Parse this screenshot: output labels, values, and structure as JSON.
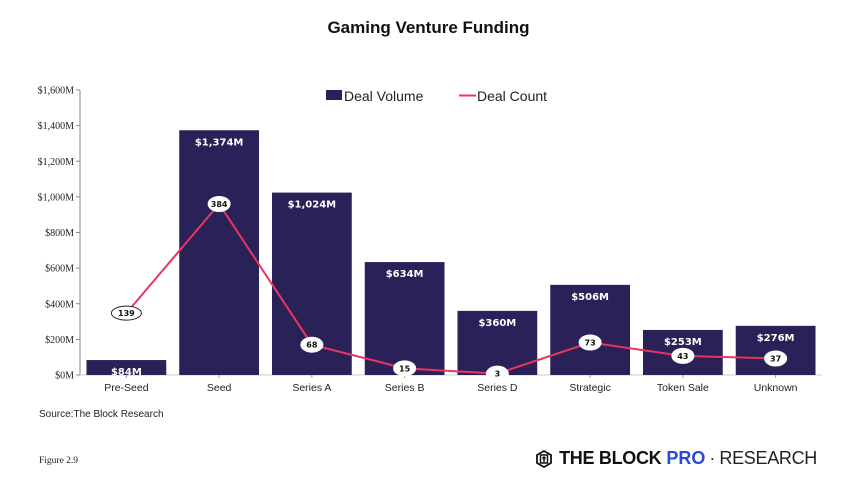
{
  "chart_data": {
    "type": "bar",
    "title": "Gaming Venture Funding",
    "xlabel": "",
    "ylabel": "",
    "categories": [
      "Pre-Seed",
      "Seed",
      "Series A",
      "Series B",
      "Series D",
      "Strategic",
      "Token Sale",
      "Unknown"
    ],
    "series": [
      {
        "name": "Deal Volume",
        "type": "bar",
        "axis": "left",
        "values": [
          84,
          1374,
          1024,
          634,
          360,
          506,
          253,
          276
        ],
        "labels": [
          "$84M",
          "$1,374M",
          "$1,024M",
          "$634M",
          "$360M",
          "$506M",
          "$253M",
          "$276M"
        ],
        "color": "#2a2159"
      },
      {
        "name": "Deal Count",
        "type": "line",
        "axis": "right-hidden",
        "values": [
          139,
          384,
          68,
          15,
          3,
          73,
          43,
          37
        ],
        "labels": [
          "139",
          "384",
          "68",
          "15",
          "3",
          "73",
          "43",
          "37"
        ],
        "color": "#e8365d"
      }
    ],
    "ylim": [
      0,
      1600
    ],
    "yticks": [
      0,
      200,
      400,
      600,
      800,
      1000,
      1200,
      1400,
      1600
    ],
    "ytick_labels": [
      "$0M",
      "$200M",
      "$400M",
      "$600M",
      "$800M",
      "$1,000M",
      "$1,200M",
      "$1,400M",
      "$1,600M"
    ],
    "count_axis_range": [
      0,
      640
    ],
    "grid": false,
    "legend": {
      "placement": "top-center",
      "entries": [
        "Deal Volume",
        "Deal Count"
      ]
    }
  },
  "footer": {
    "source": "Source:The Block Research",
    "figure": "Figure 2.9",
    "logo": {
      "brand": "THE BLOCK",
      "pro": "PRO",
      "separator": "·",
      "research": "RESEARCH",
      "pro_color": "#2a49d8"
    }
  }
}
